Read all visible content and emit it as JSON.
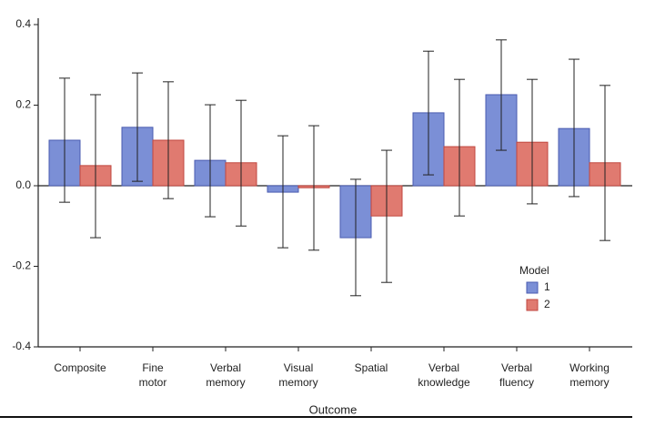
{
  "chart_data": {
    "type": "bar",
    "categories": [
      [
        "Composite"
      ],
      [
        "Fine",
        "motor"
      ],
      [
        "Verbal",
        "memory"
      ],
      [
        "Visual",
        "memory"
      ],
      [
        "Spatial"
      ],
      [
        "Verbal",
        "knowledge"
      ],
      [
        "Verbal",
        "fluency"
      ],
      [
        "Working",
        "memory"
      ]
    ],
    "x_label": "Outcome",
    "legend_title": "Model",
    "series": [
      {
        "name": "1",
        "color": "#7b8fd6",
        "edge": "#4a5bb0",
        "values": [
          0.113,
          0.145,
          0.063,
          -0.016,
          -0.129,
          0.181,
          0.226,
          0.142
        ],
        "ci_low": [
          -0.041,
          0.011,
          -0.077,
          -0.154,
          -0.273,
          0.027,
          0.088,
          -0.027
        ],
        "ci_high": [
          0.267,
          0.28,
          0.201,
          0.124,
          0.016,
          0.334,
          0.362,
          0.314
        ]
      },
      {
        "name": "2",
        "color": "#e07a70",
        "edge": "#c0473f",
        "values": [
          0.05,
          0.113,
          0.057,
          -0.005,
          -0.075,
          0.097,
          0.108,
          0.057
        ],
        "ci_low": [
          -0.129,
          -0.032,
          -0.1,
          -0.16,
          -0.24,
          -0.075,
          -0.045,
          -0.136
        ],
        "ci_high": [
          0.226,
          0.258,
          0.212,
          0.149,
          0.088,
          0.264,
          0.264,
          0.249
        ]
      }
    ],
    "ylim": [
      -0.4,
      0.4
    ],
    "yticks": [
      -0.4,
      -0.2,
      {
        "value": 0,
        "label": "0.0"
      },
      0.2,
      0.4
    ]
  }
}
